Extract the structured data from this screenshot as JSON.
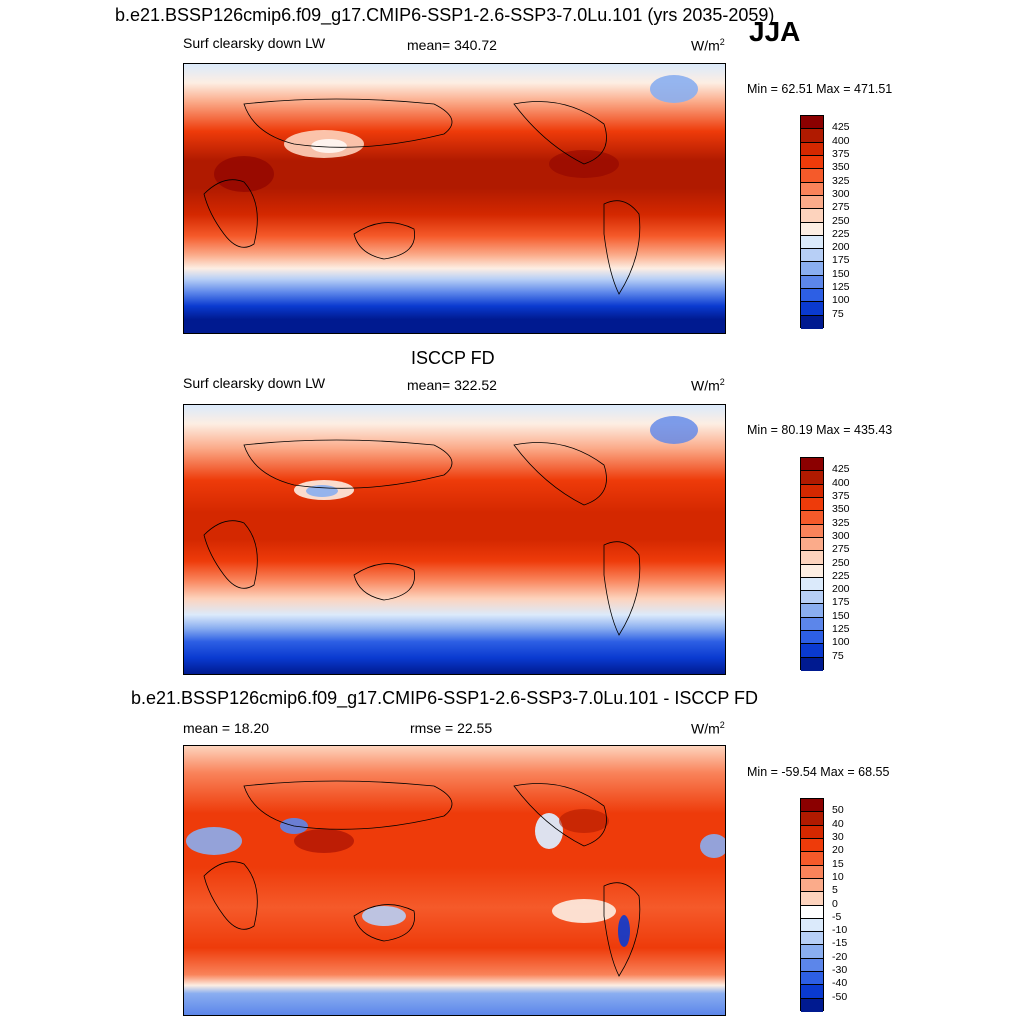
{
  "header": {
    "title": "b.e21.BSSP126cmip6.f09_g17.CMIP6-SSP1-2.6-SSP3-7.0Lu.101 (yrs 2035-2059)",
    "season": "JJA"
  },
  "panels": [
    {
      "id": "model",
      "panel_title": "",
      "left_label": "Surf clearsky down LW",
      "center_label": "mean= 340.72",
      "units": "W/m",
      "units_sup": "2",
      "minmax": "Min =  62.51 Max = 471.51",
      "colorbar": {
        "ticks": [
          "425",
          "400",
          "375",
          "350",
          "325",
          "300",
          "275",
          "250",
          "225",
          "200",
          "175",
          "150",
          "125",
          "100",
          "75"
        ],
        "colors": [
          "#8b0000",
          "#b01a00",
          "#d42800",
          "#ee3b0a",
          "#f55a2a",
          "#f9835a",
          "#fbab8a",
          "#fdd3bd",
          "#fdeee3",
          "#dbeafb",
          "#b7cff6",
          "#8aaef0",
          "#5c86ea",
          "#2d5fe4",
          "#0a3ad0",
          "#001a90"
        ]
      }
    },
    {
      "id": "obs",
      "panel_title": "ISCCP FD",
      "left_label": "Surf clearsky down LW",
      "center_label": "mean= 322.52",
      "units": "W/m",
      "units_sup": "2",
      "minmax": "Min =  80.19 Max = 435.43",
      "colorbar": {
        "ticks": [
          "425",
          "400",
          "375",
          "350",
          "325",
          "300",
          "275",
          "250",
          "225",
          "200",
          "175",
          "150",
          "125",
          "100",
          "75"
        ],
        "colors": [
          "#8b0000",
          "#b01a00",
          "#d42800",
          "#ee3b0a",
          "#f55a2a",
          "#f9835a",
          "#fbab8a",
          "#fdd3bd",
          "#fdeee3",
          "#dbeafb",
          "#b7cff6",
          "#8aaef0",
          "#5c86ea",
          "#2d5fe4",
          "#0a3ad0",
          "#001a90"
        ]
      }
    },
    {
      "id": "diff",
      "panel_title": "b.e21.BSSP126cmip6.f09_g17.CMIP6-SSP1-2.6-SSP3-7.0Lu.101 - ISCCP FD",
      "left_label": "mean =  18.20",
      "center_label": "rmse =  22.55",
      "units": "W/m",
      "units_sup": "2",
      "minmax": "Min = -59.54 Max =  68.55",
      "colorbar": {
        "ticks": [
          "50",
          "40",
          "30",
          "20",
          "15",
          "10",
          "5",
          "0",
          "-5",
          "-10",
          "-15",
          "-20",
          "-30",
          "-40",
          "-50"
        ],
        "colors": [
          "#8b0000",
          "#b01a00",
          "#d42800",
          "#ee3b0a",
          "#f55a2a",
          "#f9835a",
          "#fbab8a",
          "#fdd3bd",
          "#ffffff",
          "#dbeafb",
          "#b7cff6",
          "#8aaef0",
          "#5c86ea",
          "#2d5fe4",
          "#0a3ad0",
          "#001a90"
        ]
      }
    }
  ]
}
